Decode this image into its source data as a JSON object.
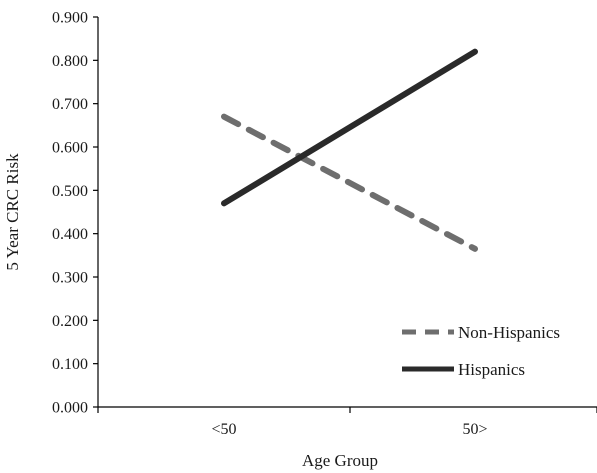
{
  "chart_data": {
    "type": "line",
    "title": "",
    "xlabel": "Age Group",
    "ylabel": "5 Year CRC Risk",
    "categories": [
      "<50",
      "50>"
    ],
    "ylim": [
      0,
      0.9
    ],
    "yticks": [
      "0.000",
      "0.100",
      "0.200",
      "0.300",
      "0.400",
      "0.500",
      "0.600",
      "0.700",
      "0.800",
      "0.900"
    ],
    "series": [
      {
        "name": "Non-Hispanics",
        "values": [
          0.67,
          0.365
        ],
        "color": "#6e6e6e",
        "style": "dashed"
      },
      {
        "name": "Hispanics",
        "values": [
          0.47,
          0.82
        ],
        "color": "#2a2a2a",
        "style": "solid"
      }
    ],
    "legend_position": "bottom-right",
    "grid": false
  }
}
